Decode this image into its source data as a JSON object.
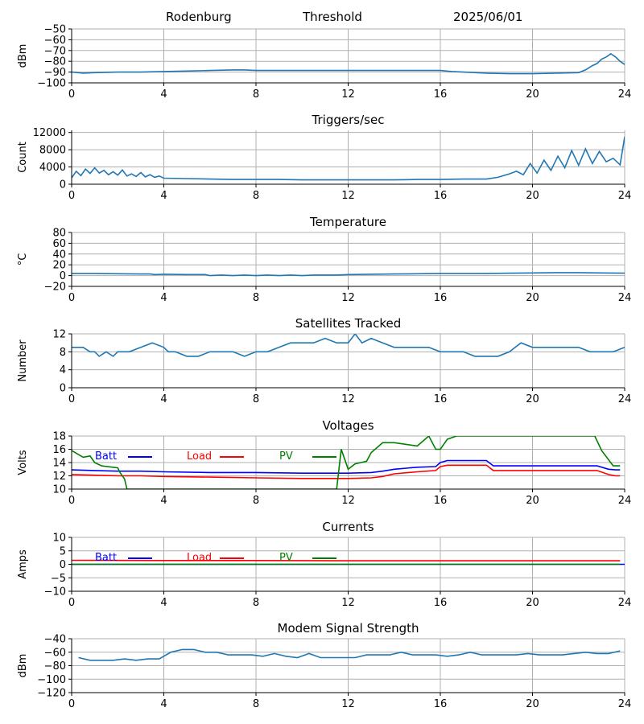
{
  "header": {
    "station": "Rodenburg",
    "mode": "Threshold",
    "date": "2025/06/01"
  },
  "colors": {
    "series": "#1f77b4",
    "batt": "#0000ff",
    "load": "#ff0000",
    "pv": "#008000",
    "grid": "#b0b0b0"
  },
  "chart_data": [
    {
      "id": "threshold",
      "type": "line",
      "title": "",
      "xlabel": "",
      "ylabel": "dBm",
      "xlim": [
        0,
        24
      ],
      "ylim": [
        -100,
        -50
      ],
      "xticks": [
        0,
        4,
        8,
        12,
        16,
        20,
        24
      ],
      "yticks": [
        -100,
        -90,
        -80,
        -70,
        -60,
        -50
      ],
      "grid": true,
      "series": [
        {
          "x": [
            0,
            0.5,
            1,
            2,
            3,
            4,
            5,
            6,
            7,
            7.5,
            8,
            9,
            10,
            11,
            12,
            13,
            14,
            15,
            16,
            16.5,
            17,
            18,
            19,
            20,
            21,
            22,
            22.3,
            22.6,
            22.8,
            23,
            23.2,
            23.4,
            23.6,
            23.8,
            24
          ],
          "y": [
            -90,
            -91,
            -90.5,
            -90,
            -90,
            -89.5,
            -89,
            -88.5,
            -88,
            -88,
            -88.5,
            -88.5,
            -88.5,
            -88.5,
            -88.5,
            -88.5,
            -88.5,
            -88.5,
            -88.5,
            -89.5,
            -90,
            -91,
            -91.5,
            -91.5,
            -91,
            -90.5,
            -88,
            -84,
            -82,
            -78,
            -76,
            -73,
            -76,
            -80,
            -83
          ]
        }
      ]
    },
    {
      "id": "triggers",
      "type": "line",
      "title": "Triggers/sec",
      "xlabel": "",
      "ylabel": "Count",
      "xlim": [
        0,
        24
      ],
      "ylim": [
        0,
        12500
      ],
      "xticks": [
        0,
        4,
        8,
        12,
        16,
        20,
        24
      ],
      "yticks": [
        0,
        4000,
        8000,
        12000
      ],
      "grid": true,
      "series": [
        {
          "x": [
            0,
            0.2,
            0.4,
            0.6,
            0.8,
            1,
            1.2,
            1.4,
            1.6,
            1.8,
            2,
            2.2,
            2.4,
            2.6,
            2.8,
            3,
            3.2,
            3.4,
            3.6,
            3.8,
            4,
            5,
            6,
            7,
            8,
            9,
            10,
            11,
            12,
            13,
            14,
            15,
            16,
            17,
            18,
            18.5,
            19,
            19.3,
            19.6,
            19.9,
            20.2,
            20.5,
            20.8,
            21.1,
            21.4,
            21.7,
            22,
            22.3,
            22.6,
            22.9,
            23.2,
            23.5,
            23.8,
            24
          ],
          "y": [
            1500,
            3000,
            2000,
            3500,
            2500,
            3800,
            2600,
            3200,
            2200,
            2900,
            2100,
            3300,
            1900,
            2400,
            1800,
            2700,
            1700,
            2200,
            1600,
            1900,
            1400,
            1300,
            1200,
            1100,
            1100,
            1100,
            1000,
            1000,
            1000,
            1000,
            1000,
            1100,
            1100,
            1200,
            1200,
            1600,
            2400,
            3000,
            2200,
            4800,
            2600,
            5600,
            3200,
            6500,
            3800,
            7800,
            4400,
            8200,
            4800,
            7600,
            5200,
            6000,
            4500,
            11000
          ]
        }
      ]
    },
    {
      "id": "temperature",
      "type": "line",
      "title": "Temperature",
      "xlabel": "",
      "ylabel": "°C",
      "xlim": [
        0,
        24
      ],
      "ylim": [
        -20,
        80
      ],
      "xticks": [
        0,
        4,
        8,
        12,
        16,
        20,
        24
      ],
      "yticks": [
        -20,
        0,
        20,
        40,
        60,
        80
      ],
      "grid": true,
      "series": [
        {
          "x": [
            0,
            1,
            2,
            3,
            3.4,
            3.6,
            4,
            5,
            5.8,
            6,
            6.5,
            7,
            7.5,
            8,
            8.5,
            9,
            9.5,
            10,
            10.5,
            11,
            11.5,
            12,
            13,
            14,
            15,
            16,
            17,
            18,
            19,
            20,
            21,
            22,
            23,
            24
          ],
          "y": [
            4,
            4,
            3.5,
            3,
            3,
            2,
            2.5,
            2,
            2,
            0,
            1,
            0,
            1,
            0,
            1,
            0,
            1,
            0,
            1,
            1,
            1,
            2,
            2.5,
            3,
            3.5,
            4,
            4,
            4,
            4.5,
            5,
            5.5,
            5.5,
            5,
            4.5
          ]
        }
      ]
    },
    {
      "id": "satellites",
      "type": "line",
      "title": "Satellites Tracked",
      "xlabel": "",
      "ylabel": "Number",
      "xlim": [
        0,
        24
      ],
      "ylim": [
        0,
        12
      ],
      "xticks": [
        0,
        4,
        8,
        12,
        16,
        20,
        24
      ],
      "yticks": [
        0,
        4,
        8,
        12
      ],
      "grid": true,
      "series": [
        {
          "x": [
            0,
            0.5,
            0.8,
            1,
            1.2,
            1.5,
            1.8,
            2,
            2.5,
            3,
            3.5,
            4,
            4.2,
            4.5,
            5,
            5.5,
            6,
            6.5,
            7,
            7.5,
            8,
            8.5,
            9,
            9.5,
            10,
            10.5,
            11,
            11.5,
            12,
            12.3,
            12.6,
            13,
            13.5,
            14,
            14.5,
            15,
            15.5,
            16,
            16.5,
            17,
            17.5,
            18,
            18.5,
            19,
            19.5,
            20,
            20.5,
            21,
            21.5,
            22,
            22.5,
            23,
            23.5,
            24
          ],
          "y": [
            9,
            9,
            8,
            8,
            7,
            8,
            7,
            8,
            8,
            9,
            10,
            9,
            8,
            8,
            7,
            7,
            8,
            8,
            8,
            7,
            8,
            8,
            9,
            10,
            10,
            10,
            11,
            10,
            10,
            12,
            10,
            11,
            10,
            9,
            9,
            9,
            9,
            8,
            8,
            8,
            7,
            7,
            7,
            8,
            10,
            9,
            9,
            9,
            9,
            9,
            8,
            8,
            8,
            9
          ]
        }
      ]
    },
    {
      "id": "voltages",
      "type": "line",
      "title": "Voltages",
      "xlabel": "",
      "ylabel": "Volts",
      "xlim": [
        0,
        24
      ],
      "ylim": [
        10,
        18
      ],
      "xticks": [
        0,
        4,
        8,
        12,
        16,
        20,
        24
      ],
      "yticks": [
        10,
        12,
        14,
        16,
        18
      ],
      "grid": true,
      "legend_position": "top",
      "series": [
        {
          "name": "Batt",
          "color": "#0000ff",
          "x": [
            0,
            1,
            2,
            3,
            4,
            6,
            8,
            10,
            12,
            13,
            13.5,
            14,
            15,
            15.8,
            16,
            16.3,
            17,
            18,
            18.3,
            19,
            20,
            21,
            22,
            22.8,
            23.3,
            23.6,
            23.8
          ],
          "y": [
            12.9,
            12.8,
            12.7,
            12.7,
            12.6,
            12.5,
            12.5,
            12.4,
            12.4,
            12.5,
            12.7,
            13,
            13.3,
            13.4,
            14,
            14.3,
            14.3,
            14.3,
            13.5,
            13.5,
            13.5,
            13.5,
            13.5,
            13.5,
            13,
            12.9,
            12.9
          ]
        },
        {
          "name": "Load",
          "color": "#ff0000",
          "x": [
            0,
            1,
            2,
            3,
            4,
            6,
            8,
            10,
            12,
            13,
            13.5,
            14,
            15,
            15.8,
            16,
            16.3,
            17,
            18,
            18.3,
            19,
            20,
            21,
            22,
            22.8,
            23.3,
            23.6,
            23.8
          ],
          "y": [
            12.2,
            12.1,
            12,
            12,
            11.9,
            11.8,
            11.7,
            11.6,
            11.6,
            11.7,
            11.9,
            12.3,
            12.6,
            12.8,
            13.4,
            13.6,
            13.6,
            13.6,
            12.8,
            12.8,
            12.8,
            12.8,
            12.8,
            12.8,
            12.2,
            12,
            12
          ]
        },
        {
          "name": "PV",
          "color": "#008000",
          "x": [
            0,
            0.5,
            0.8,
            1,
            1.3,
            2,
            2.1,
            2.3,
            2.4,
            11.5,
            11.7,
            12,
            12.3,
            12.8,
            13,
            13.5,
            14,
            15,
            15.5,
            15.8,
            16,
            16.3,
            16.7,
            17,
            22.7,
            23,
            23.5,
            23.8
          ],
          "y": [
            15.8,
            14.8,
            15,
            14,
            13.5,
            13.2,
            12.5,
            11.5,
            10,
            10,
            16,
            13,
            13.8,
            14.2,
            15.5,
            17,
            17,
            16.5,
            18,
            16,
            16,
            17.5,
            18,
            18,
            18,
            15.8,
            13.5,
            13.5
          ]
        }
      ]
    },
    {
      "id": "currents",
      "type": "line",
      "title": "Currents",
      "xlabel": "",
      "ylabel": "Amps",
      "xlim": [
        0,
        24
      ],
      "ylim": [
        -10,
        10
      ],
      "xticks": [
        0,
        4,
        8,
        12,
        16,
        20,
        24
      ],
      "yticks": [
        -10,
        -5,
        0,
        5,
        10
      ],
      "grid": true,
      "legend_position": "top",
      "series": [
        {
          "name": "Batt",
          "color": "#0000ff",
          "x": [
            0,
            24
          ],
          "y": [
            0,
            0
          ]
        },
        {
          "name": "Load",
          "color": "#ff0000",
          "x": [
            0,
            4,
            8,
            12,
            16,
            20,
            23.8
          ],
          "y": [
            1.5,
            1.4,
            1.4,
            1.3,
            1.3,
            1.3,
            1.3
          ]
        },
        {
          "name": "PV",
          "color": "#008000",
          "x": [
            0,
            23.8
          ],
          "y": [
            0,
            0
          ]
        }
      ]
    },
    {
      "id": "modem",
      "type": "line",
      "title": "Modem Signal Strength",
      "xlabel": "",
      "ylabel": "dBm",
      "xlim": [
        0,
        24
      ],
      "ylim": [
        -120,
        -40
      ],
      "xticks": [
        0,
        4,
        8,
        12,
        16,
        20,
        24
      ],
      "yticks": [
        -120,
        -100,
        -80,
        -60,
        -40
      ],
      "grid": true,
      "series": [
        {
          "x": [
            0.3,
            0.8,
            1.3,
            1.8,
            2.3,
            2.8,
            3.3,
            3.8,
            4.3,
            4.8,
            5.3,
            5.8,
            6.3,
            6.8,
            7.3,
            7.8,
            8.3,
            8.8,
            9.3,
            9.8,
            10.3,
            10.8,
            11.3,
            11.8,
            12.3,
            12.8,
            13.3,
            13.8,
            14.3,
            14.8,
            15.3,
            15.8,
            16.3,
            16.8,
            17.3,
            17.8,
            18.3,
            18.8,
            19.3,
            19.8,
            20.3,
            20.8,
            21.3,
            21.8,
            22.3,
            22.8,
            23.3,
            23.8
          ],
          "y": [
            -68,
            -72,
            -72,
            -72,
            -70,
            -72,
            -70,
            -70,
            -60,
            -56,
            -56,
            -60,
            -60,
            -64,
            -64,
            -64,
            -66,
            -62,
            -66,
            -68,
            -62,
            -68,
            -68,
            -68,
            -68,
            -64,
            -64,
            -64,
            -60,
            -64,
            -64,
            -64,
            -66,
            -64,
            -60,
            -64,
            -64,
            -64,
            -64,
            -62,
            -64,
            -64,
            -64,
            -62,
            -60,
            -62,
            -62,
            -58
          ]
        }
      ]
    }
  ]
}
